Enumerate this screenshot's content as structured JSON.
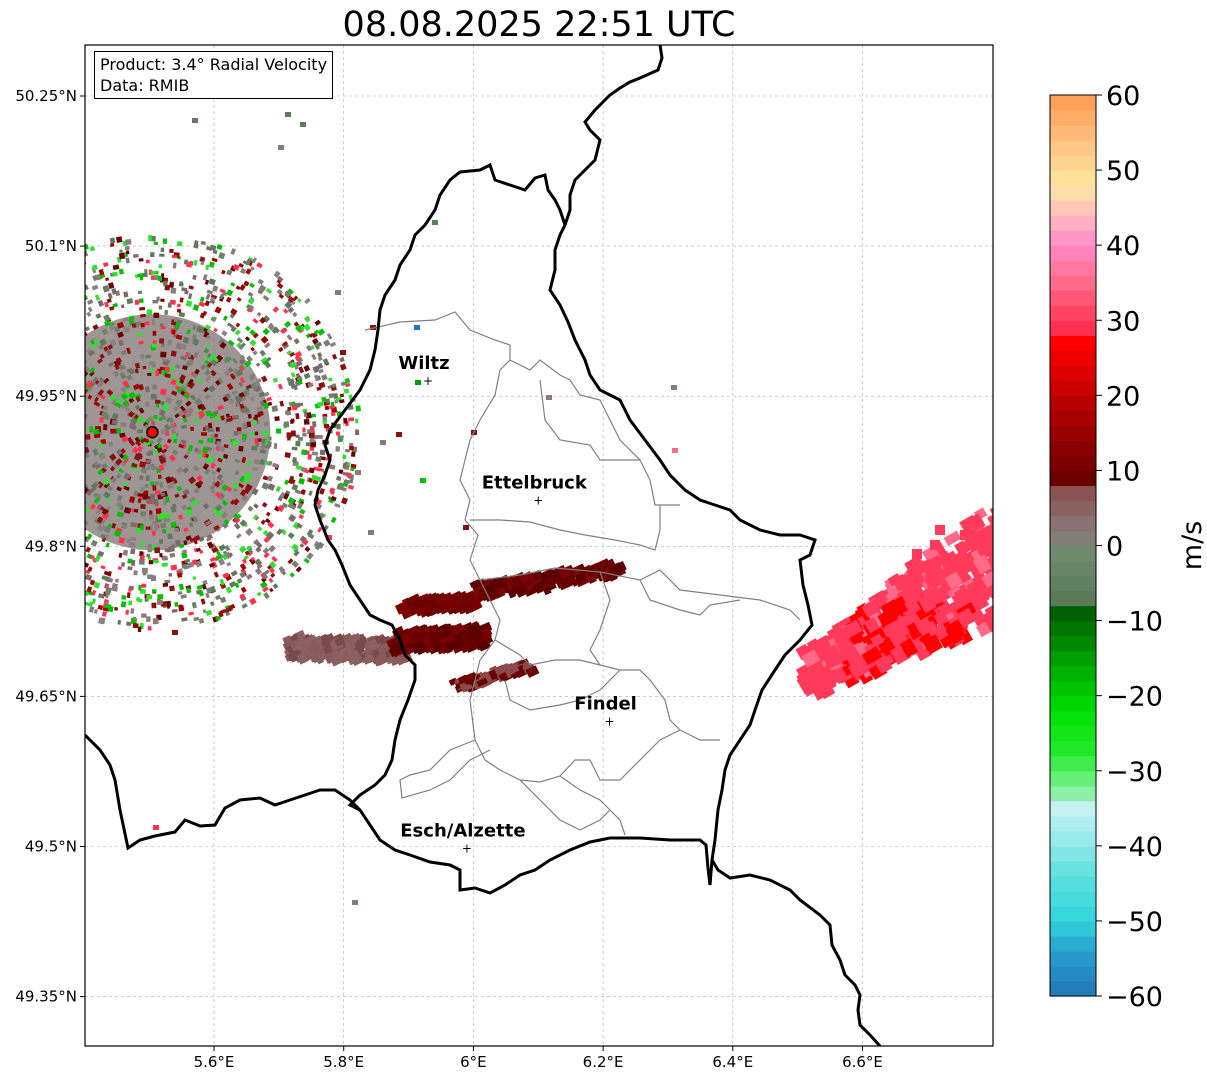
{
  "title": "08.08.2025 22:51 UTC",
  "info": {
    "product": "Product: 3.4° Radial Velocity",
    "source": "Data: RMIB"
  },
  "map": {
    "lon_range": [
      5.4,
      6.8
    ],
    "lat_range": [
      49.3,
      50.3
    ],
    "lon_ticks": [
      {
        "value": 5.6,
        "label": "5.6°E"
      },
      {
        "value": 5.8,
        "label": "5.8°E"
      },
      {
        "value": 6.0,
        "label": "6°E"
      },
      {
        "value": 6.2,
        "label": "6.2°E"
      },
      {
        "value": 6.4,
        "label": "6.4°E"
      },
      {
        "value": 6.6,
        "label": "6.6°E"
      }
    ],
    "lat_ticks": [
      {
        "value": 50.25,
        "label": "50.25°N"
      },
      {
        "value": 50.1,
        "label": "50.1°N"
      },
      {
        "value": 49.95,
        "label": "49.95°N"
      },
      {
        "value": 49.8,
        "label": "49.8°N"
      },
      {
        "value": 49.65,
        "label": "49.65°N"
      },
      {
        "value": 49.5,
        "label": "49.5°N"
      },
      {
        "value": 49.35,
        "label": "49.35°N"
      }
    ],
    "cities": [
      {
        "name": "Wiltz",
        "lon": 5.93,
        "lat": 49.966
      },
      {
        "name": "Ettelbruck",
        "lon": 6.1,
        "lat": 49.847
      },
      {
        "name": "Findel",
        "lon": 6.21,
        "lat": 49.626
      },
      {
        "name": "Esch/Alzette",
        "lon": 5.99,
        "lat": 49.499
      }
    ],
    "radar_site": {
      "lon": 5.505,
      "lat": 49.914
    },
    "grid": true,
    "colors": {
      "border": "#000000",
      "districts": "#808080",
      "site_marker": "#ff0000"
    }
  },
  "colorbar": {
    "label": "m/s",
    "range": [
      -60,
      60
    ],
    "ticks": [
      {
        "value": 60,
        "label": "60"
      },
      {
        "value": 50,
        "label": "50"
      },
      {
        "value": 40,
        "label": "40"
      },
      {
        "value": 30,
        "label": "30"
      },
      {
        "value": 20,
        "label": "20"
      },
      {
        "value": 10,
        "label": "10"
      },
      {
        "value": 0,
        "label": "0"
      },
      {
        "value": -10,
        "label": "−10"
      },
      {
        "value": -20,
        "label": "−20"
      },
      {
        "value": -30,
        "label": "−30"
      },
      {
        "value": -40,
        "label": "−40"
      },
      {
        "value": -50,
        "label": "−50"
      },
      {
        "value": -60,
        "label": "−60"
      }
    ],
    "color_stops": [
      {
        "v": -60,
        "c": "#1f77b4"
      },
      {
        "v": -54,
        "c": "#2a9fd0"
      },
      {
        "v": -50,
        "c": "#2fd6dc"
      },
      {
        "v": -44,
        "c": "#5ee0e0"
      },
      {
        "v": -38,
        "c": "#a5ecec"
      },
      {
        "v": -35,
        "c": "#c4f2f2"
      },
      {
        "v": -33,
        "c": "#8ef0a8"
      },
      {
        "v": -30,
        "c": "#50f060"
      },
      {
        "v": -27,
        "c": "#22e82a"
      },
      {
        "v": -22,
        "c": "#00e000"
      },
      {
        "v": -16,
        "c": "#00a800"
      },
      {
        "v": -9,
        "c": "#006000"
      },
      {
        "v": -7,
        "c": "#5a7a5a"
      },
      {
        "v": -1,
        "c": "#708a70"
      },
      {
        "v": 2,
        "c": "#8a7a7a"
      },
      {
        "v": 8,
        "c": "#8a4a4a"
      },
      {
        "v": 9,
        "c": "#6a0000"
      },
      {
        "v": 18,
        "c": "#b00000"
      },
      {
        "v": 27,
        "c": "#ff0000"
      },
      {
        "v": 29,
        "c": "#ff3050"
      },
      {
        "v": 35,
        "c": "#ff6a88"
      },
      {
        "v": 40,
        "c": "#ff8ac8"
      },
      {
        "v": 44,
        "c": "#ffbcc0"
      },
      {
        "v": 48,
        "c": "#ffe8a0"
      },
      {
        "v": 54,
        "c": "#ffc080"
      },
      {
        "v": 60,
        "c": "#ff9a50"
      }
    ]
  },
  "velocity_features": [
    {
      "name": "radar-clutter-west",
      "color": "#7a6a6a"
    },
    {
      "name": "inbound-band-center",
      "color": "#6a0000"
    },
    {
      "name": "outbound-cell-east",
      "color": "#ff3050"
    }
  ]
}
